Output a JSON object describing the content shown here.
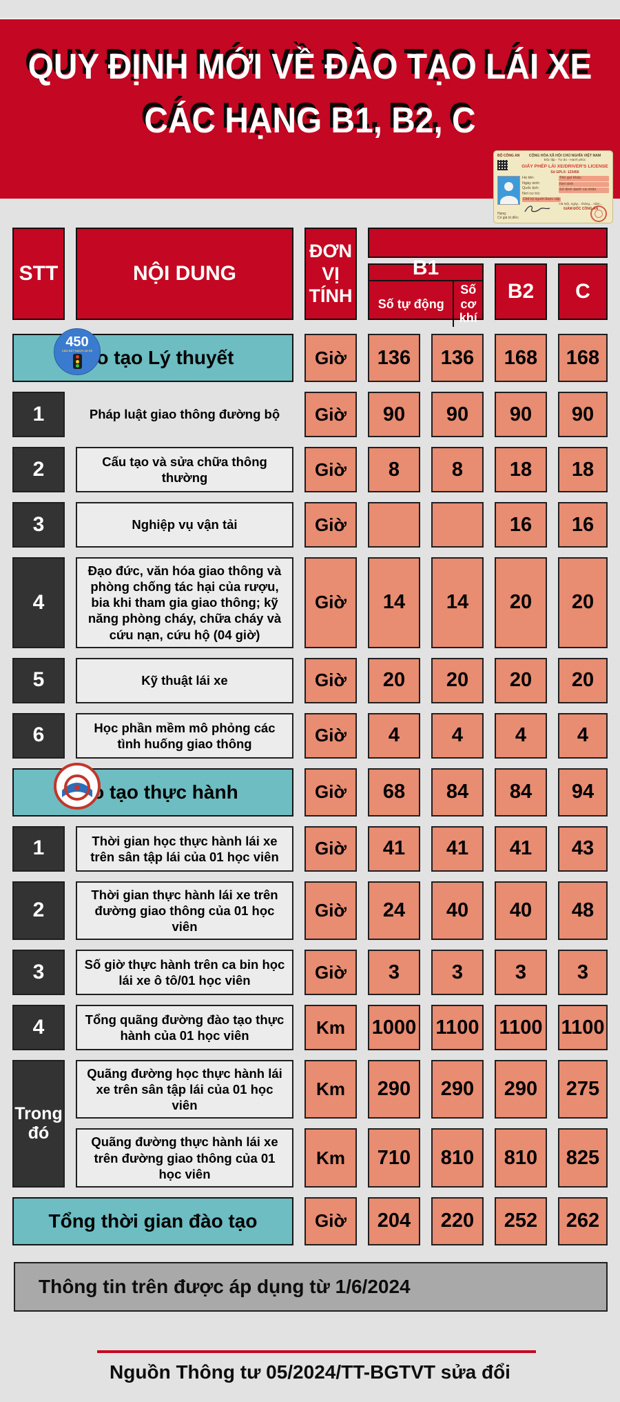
{
  "colors": {
    "red": "#c40722",
    "salmon": "#e88c72",
    "teal": "#6dbdc2",
    "dark_cell": "#333333",
    "page_bg": "#e2e2e2",
    "note_gray": "#a9a9a9"
  },
  "header": {
    "title_line1": "QUY ĐỊNH MỚI VỀ ĐÀO TẠO LÁI XE",
    "title_line2": "CÁC HẠNG B1, B2, C"
  },
  "license_card": {
    "ministry": "BỘ CÔNG AN",
    "country": "CỘNG HÒA XÃ HỘI CHỦ NGHĨA VIỆT NAM",
    "motto": "Độc lập - Tự do - Hạnh phúc",
    "doc_title": "GIẤY PHÉP LÁI XE/DRIVER'S LICENSE",
    "number": "Số GPLX: 123456",
    "fields_left": [
      "Họ tên:",
      "Ngày sinh:",
      "Quốc tịch:",
      "Nơi cư trú:"
    ],
    "fields_right": [
      "Tên gọi khác:",
      "Nơi sinh",
      "Số định danh cá nhân"
    ],
    "signature_label": "Chữ ký người được cấp",
    "place_date": "Hà Nội, ngày... tháng... năm...",
    "issuer": "GIÁM ĐỐC CÔNG AN",
    "class_label": "Hạng:",
    "valid_label": "Có giá trị đến:"
  },
  "table": {
    "headers": {
      "stt": "STT",
      "content": "NỘI DUNG",
      "unit": "ĐƠN VỊ TÍNH",
      "b1": "B1",
      "b1_auto": "Số tự động",
      "b1_manual": "Số cơ khí",
      "b2": "B2",
      "c": "C"
    },
    "rows": [
      {
        "type": "section",
        "icon": "theory-logo",
        "label": "Đào tạo Lý thuyết",
        "unit": "Giờ",
        "values": [
          "136",
          "136",
          "168",
          "168"
        ]
      },
      {
        "type": "item",
        "stt": "1",
        "boxed": false,
        "label": "Pháp luật giao thông đường bộ",
        "unit": "Giờ",
        "values": [
          "90",
          "90",
          "90",
          "90"
        ]
      },
      {
        "type": "item",
        "stt": "2",
        "label": "Cấu tạo và sửa chữa thông thường",
        "unit": "Giờ",
        "values": [
          "8",
          "8",
          "18",
          "18"
        ]
      },
      {
        "type": "item",
        "stt": "3",
        "label": "Nghiệp vụ vận tải",
        "unit": "Giờ",
        "values": [
          "",
          "",
          "16",
          "16"
        ]
      },
      {
        "type": "item",
        "stt": "4",
        "label": "Đạo đức, văn hóa giao thông và phòng chống tác hại của rượu, bia khi tham gia giao thông; kỹ năng phòng cháy, chữa cháy và cứu nạn, cứu hộ (04 giờ)",
        "unit": "Giờ",
        "values": [
          "14",
          "14",
          "20",
          "20"
        ]
      },
      {
        "type": "item",
        "stt": "5",
        "label": "Kỹ thuật lái xe",
        "unit": "Giờ",
        "values": [
          "20",
          "20",
          "20",
          "20"
        ]
      },
      {
        "type": "item",
        "stt": "6",
        "label": "Học phần mềm mô phỏng các tình huống giao thông",
        "unit": "Giờ",
        "values": [
          "4",
          "4",
          "4",
          "4"
        ]
      },
      {
        "type": "section",
        "icon": "practice-logo",
        "label": "Đào tạo thực hành",
        "unit": "Giờ",
        "values": [
          "68",
          "84",
          "84",
          "94"
        ]
      },
      {
        "type": "item",
        "stt": "1",
        "label": "Thời gian học thực hành lái xe trên sân tập lái của 01 học viên",
        "unit": "Giờ",
        "values": [
          "41",
          "41",
          "41",
          "43"
        ]
      },
      {
        "type": "item",
        "stt": "2",
        "label": "Thời gian thực hành lái xe trên đường giao thông của 01 học viên",
        "unit": "Giờ",
        "values": [
          "24",
          "40",
          "40",
          "48"
        ]
      },
      {
        "type": "item",
        "stt": "3",
        "label": "Số giờ thực hành trên ca bin học lái xe ô tô/01 học viên",
        "unit": "Giờ",
        "values": [
          "3",
          "3",
          "3",
          "3"
        ]
      },
      {
        "type": "item",
        "stt": "4",
        "label": "Tổng quãng đường đào tạo thực hành của 01 học viên",
        "unit": "Km",
        "values": [
          "1000",
          "1100",
          "1100",
          "1100"
        ]
      },
      {
        "type": "group",
        "stt": "Trong đó",
        "subrows": [
          {
            "label": "Quãng đường học thực hành lái xe trên sân tập lái của 01 học viên",
            "unit": "Km",
            "values": [
              "290",
              "290",
              "290",
              "275"
            ]
          },
          {
            "label": "Quãng đường thực hành lái xe trên đường giao thông của 01 học viên",
            "unit": "Km",
            "values": [
              "710",
              "810",
              "810",
              "825"
            ]
          }
        ]
      },
      {
        "type": "total",
        "label": "Tổng thời gian đào tạo",
        "unit": "Giờ",
        "values": [
          "204",
          "220",
          "252",
          "262"
        ]
      }
    ]
  },
  "footer": {
    "note": "Thông tin trên được áp dụng từ 1/6/2024",
    "source": "Nguồn Thông tư 05/2024/TT-BGTVT sửa đổi"
  },
  "chart_data": {
    "type": "table",
    "title": "QUY ĐỊNH MỚI VỀ ĐÀO TẠO LÁI XE CÁC HẠNG B1, B2, C",
    "columns": [
      "STT",
      "NỘI DUNG",
      "ĐƠN VỊ TÍNH",
      "B1 - Số tự động",
      "B1 - Số cơ khí",
      "B2",
      "C"
    ],
    "rows": [
      [
        "",
        "Đào tạo Lý thuyết",
        "Giờ",
        136,
        136,
        168,
        168
      ],
      [
        "1",
        "Pháp luật giao thông đường bộ",
        "Giờ",
        90,
        90,
        90,
        90
      ],
      [
        "2",
        "Cấu tạo và sửa chữa thông thường",
        "Giờ",
        8,
        8,
        18,
        18
      ],
      [
        "3",
        "Nghiệp vụ vận tải",
        "Giờ",
        null,
        null,
        16,
        16
      ],
      [
        "4",
        "Đạo đức, văn hóa giao thông và phòng chống tác hại của rượu, bia khi tham gia giao thông; kỹ năng phòng cháy, chữa cháy và cứu nạn, cứu hộ (04 giờ)",
        "Giờ",
        14,
        14,
        20,
        20
      ],
      [
        "5",
        "Kỹ thuật lái xe",
        "Giờ",
        20,
        20,
        20,
        20
      ],
      [
        "6",
        "Học phần mềm mô phỏng các tình huống giao thông",
        "Giờ",
        4,
        4,
        4,
        4
      ],
      [
        "",
        "Đào tạo thực hành",
        "Giờ",
        68,
        84,
        84,
        94
      ],
      [
        "1",
        "Thời gian học thực hành lái xe trên sân tập lái của 01 học viên",
        "Giờ",
        41,
        41,
        41,
        43
      ],
      [
        "2",
        "Thời gian thực hành lái xe trên đường giao thông của 01 học viên",
        "Giờ",
        24,
        40,
        40,
        48
      ],
      [
        "3",
        "Số giờ thực hành trên ca bin học lái xe ô tô/01 học viên",
        "Giờ",
        3,
        3,
        3,
        3
      ],
      [
        "4",
        "Tổng quãng đường đào tạo thực hành của 01 học viên",
        "Km",
        1000,
        1100,
        1100,
        1100
      ],
      [
        "Trong đó",
        "Quãng đường học thực hành lái xe trên sân tập lái của 01 học viên",
        "Km",
        290,
        290,
        290,
        275
      ],
      [
        "Trong đó",
        "Quãng đường thực hành lái xe trên đường giao thông của 01 học viên",
        "Km",
        710,
        810,
        810,
        825
      ],
      [
        "",
        "Tổng thời gian đào tạo",
        "Giờ",
        204,
        220,
        252,
        262
      ]
    ],
    "notes": [
      "Thông tin trên được áp dụng từ 1/6/2024",
      "Nguồn Thông tư 05/2024/TT-BGTVT sửa đổi"
    ]
  }
}
